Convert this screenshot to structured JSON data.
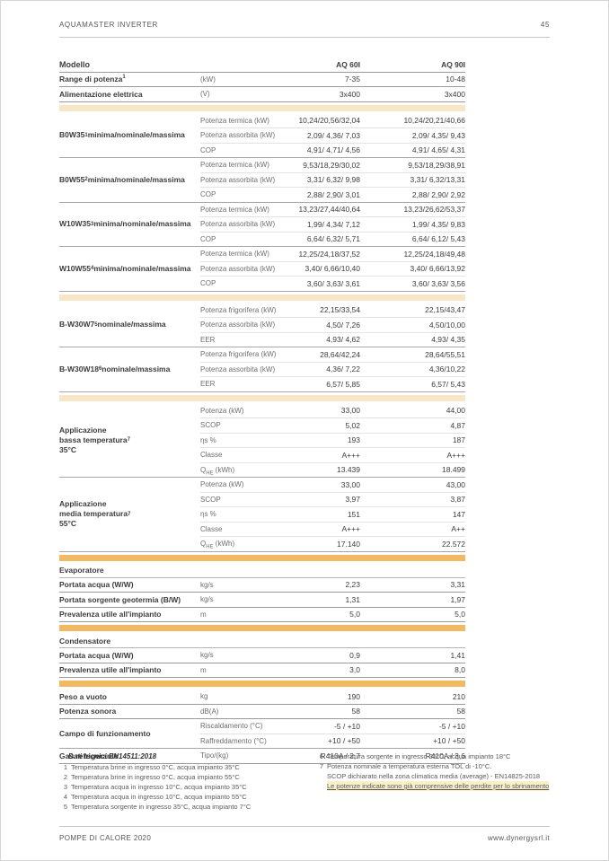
{
  "page": {
    "doc_title": "AQUAMASTER INVERTER",
    "number": "45",
    "footer_left": "POMPE DI CALORE 2020",
    "footer_right": "www.dynergysrl.it"
  },
  "colors": {
    "band_cream": "#f8e7c6",
    "band_orange": "#f0ba63",
    "highlight": "#f9f0c8"
  },
  "models": [
    "AQ 60I",
    "AQ 90I"
  ],
  "table": {
    "blocks": [
      {
        "type": "row",
        "label": "Modello",
        "unit": "",
        "v1": "AQ 60I",
        "v2": "AQ 90I",
        "head": true,
        "vbold": true,
        "line": "strong"
      },
      {
        "type": "row",
        "label": "Range di potenza^{1}",
        "unit": "(kW)",
        "v1": "7-35",
        "v2": "10-48",
        "line": "strong"
      },
      {
        "type": "row",
        "label": "Alimentazione elettrica",
        "unit": "(V)",
        "v1": "3x400",
        "v2": "3x400",
        "line": "strong"
      },
      {
        "type": "band",
        "tone": "cream"
      },
      {
        "type": "group",
        "label": "B0W35^{1} minima/nominale/massima",
        "rows": [
          {
            "name": "Potenza termica (kW)",
            "v1": "10,24/20,56/32,04",
            "v2": "10,24/20,21/40,66"
          },
          {
            "name": "Potenza assorbita (kW)",
            "v1": "2,09/ 4,36/ 7,03",
            "v2": "2,09/ 4,35/ 9,43"
          },
          {
            "name": "COP",
            "v1": "4,91/ 4,71/ 4,56",
            "v2": "4,91/ 4,65/ 4,31"
          }
        ]
      },
      {
        "type": "group",
        "label": "B0W55^{2} minima/nominale/massima",
        "rows": [
          {
            "name": "Potenza termica (kW)",
            "v1": "9,53/18,29/30,02",
            "v2": "9,53/18,29/38,91"
          },
          {
            "name": "Potenza assorbita (kW)",
            "v1": "3,31/ 6,32/ 9,98",
            "v2": "3,31/ 6,32/13,31"
          },
          {
            "name": "COP",
            "v1": "2,88/ 2,90/ 3,01",
            "v2": "2,88/ 2,90/ 2,92"
          }
        ]
      },
      {
        "type": "group",
        "label": "W10W35^{3} minima/nominale/massima",
        "rows": [
          {
            "name": "Potenza termica (kW)",
            "v1": "13,23/27,44/40,64",
            "v2": "13,23/26,62/53,37"
          },
          {
            "name": "Potenza assorbita (kW)",
            "v1": "1,99/ 4,34/ 7,12",
            "v2": "1,99/ 4,35/ 9,83"
          },
          {
            "name": "COP",
            "v1": "6,64/ 6,32/ 5,71",
            "v2": "6,64/ 6,12/ 5,43"
          }
        ]
      },
      {
        "type": "group",
        "label": "W10W55^{4} minima/nominale/massima",
        "rows": [
          {
            "name": "Potenza termica (kW)",
            "v1": "12,25/24,18/37,52",
            "v2": "12,25/24,18/49,48"
          },
          {
            "name": "Potenza assorbita (kW)",
            "v1": "3,40/ 6,66/10,40",
            "v2": "3,40/ 6,66/13,92"
          },
          {
            "name": "COP",
            "v1": "3,60/ 3,63/ 3,61",
            "v2": "3,60/ 3,63/ 3,56"
          }
        ]
      },
      {
        "type": "band",
        "tone": "cream"
      },
      {
        "type": "group",
        "label": "B-W30W7^{5} nominale/massima",
        "rows": [
          {
            "name": "Potenza frigorifera (kW)",
            "v1": "22,15/33,54",
            "v2": "22,15/43,47"
          },
          {
            "name": "Potenza assorbita (kW)",
            "v1": "4,50/ 7,26",
            "v2": "4,50/10,00"
          },
          {
            "name": "EER",
            "v1": "4,93/ 4,62",
            "v2": "4,93/ 4,35"
          }
        ]
      },
      {
        "type": "group",
        "label": "B-W30W18^{6} nominale/massima",
        "rows": [
          {
            "name": "Potenza frigorifera (kW)",
            "v1": "28,64/42,24",
            "v2": "28,64/55,51"
          },
          {
            "name": "Potenza assorbita (kW)",
            "v1": "4,36/ 7,22",
            "v2": "4,36/10,22"
          },
          {
            "name": "EER",
            "v1": "6,57/ 5,85",
            "v2": "6,57/ 5,43"
          }
        ]
      },
      {
        "type": "band",
        "tone": "cream"
      },
      {
        "type": "group",
        "label": "Applicazione\nbassa temperatura\n35°C ^{7}",
        "rows": [
          {
            "name": "Potenza (kW)",
            "v1": "33,00",
            "v2": "44,00"
          },
          {
            "name": "SCOP",
            "v1": "5,02",
            "v2": "4,87"
          },
          {
            "name": "ηs %",
            "v1": "193",
            "v2": "187"
          },
          {
            "name": "Classe",
            "v1": "A+++",
            "v2": "A+++"
          },
          {
            "name": "Q_{HE} (kWh)",
            "v1": "13.439",
            "v2": "18.499"
          }
        ]
      },
      {
        "type": "group",
        "label": "Applicazione\nmedia temperatura\n55°C ^{7}",
        "rows": [
          {
            "name": "Potenza (kW)",
            "v1": "33,00",
            "v2": "43,00"
          },
          {
            "name": "SCOP",
            "v1": "3,97",
            "v2": "3,87"
          },
          {
            "name": "ηs %",
            "v1": "151",
            "v2": "147"
          },
          {
            "name": "Classe",
            "v1": "A+++",
            "v2": "A++"
          },
          {
            "name": "Q_{HE} (kWh)",
            "v1": "17.140",
            "v2": "22.572"
          }
        ]
      },
      {
        "type": "band",
        "tone": "orange"
      },
      {
        "type": "section",
        "label": "Evaporatore"
      },
      {
        "type": "row",
        "label": "Portata acqua (W/W)",
        "unit": "kg/s",
        "v1": "2,23",
        "v2": "3,31",
        "line": "strong"
      },
      {
        "type": "row",
        "label": "Portata sorgente geotermia (B/W)",
        "unit": "kg/s",
        "v1": "1,31",
        "v2": "1,97",
        "line": "strong"
      },
      {
        "type": "row",
        "label": "Prevalenza utile all'impianto",
        "unit": "m",
        "v1": "5,0",
        "v2": "5,0",
        "line": "strong"
      },
      {
        "type": "band",
        "tone": "orange"
      },
      {
        "type": "section",
        "label": "Condensatore"
      },
      {
        "type": "row",
        "label": "Portata acqua (W/W)",
        "unit": "kg/s",
        "v1": "0,9",
        "v2": "1,41",
        "line": "strong"
      },
      {
        "type": "row",
        "label": "Prevalenza utile all'impianto",
        "unit": "m",
        "v1": "3,0",
        "v2": "8,0",
        "line": "strong"
      },
      {
        "type": "band",
        "tone": "orange"
      },
      {
        "type": "row",
        "label": "Peso a vuoto",
        "unit": "kg",
        "v1": "190",
        "v2": "210",
        "line": "strong"
      },
      {
        "type": "row",
        "label": "Potenza sonora",
        "unit": "dB(A)",
        "v1": "58",
        "v2": "58",
        "line": "strong"
      },
      {
        "type": "group",
        "label": "Campo di funzionamento",
        "rows": [
          {
            "name": "Riscaldamento (°C)",
            "v1": "-5 / +10",
            "v2": "-5 / +10"
          },
          {
            "name": "Raffreddamento (°C)",
            "v1": "+10 / +50",
            "v2": "+10 / +50"
          }
        ]
      },
      {
        "type": "row",
        "label": "Gas refrigerante",
        "unit": "Tipo/(kg)",
        "v1": "R410A / 2,7",
        "v2": "R410A / 3,6",
        "line": "strong"
      }
    ]
  },
  "footnotes": {
    "title": "Dati tecnici EN14511:2018",
    "left": [
      {
        "n": "1",
        "text": "Temperatura brine in ingresso 0°C, acqua impianto 35°C"
      },
      {
        "n": "2",
        "text": "Temperatura brine in ingresso 0°C, acqua impianto 55°C"
      },
      {
        "n": "3",
        "text": "Temperatura acqua in ingresso 10°C, acqua impianto 35°C"
      },
      {
        "n": "4",
        "text": "Temperatura acqua in ingresso 10°C, acqua impianto 55°C"
      },
      {
        "n": "5",
        "text": "Temperatura sorgente in ingresso 35°C, acqua impianto 7°C"
      }
    ],
    "right": [
      {
        "n": "6",
        "text": "Temperatura sorgente in ingresso 35°C, acqua impianto 18°C"
      },
      {
        "n": "7",
        "text": "Potenza nominale a temperatura esterna TOL di -10°C."
      },
      {
        "n": "",
        "text": "SCOP dichiarato nella zona climatica media (average) - EN14825-2018"
      },
      {
        "n": "",
        "text": "Le potenze indicate sono già comprensive delle perdite per lo sbrinamento",
        "highlight": true
      }
    ]
  }
}
